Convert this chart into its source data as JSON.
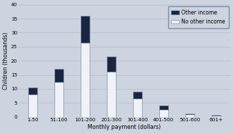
{
  "categories": [
    "1-50",
    "51-100",
    "101-200",
    "201-300",
    "301-400",
    "401-500",
    "501-600",
    "601+"
  ],
  "no_other_income": [
    8,
    12.5,
    26.5,
    16,
    6.5,
    2.5,
    0.8,
    0.4
  ],
  "other_income": [
    2.5,
    4.5,
    9.5,
    5.5,
    2.5,
    1.5,
    0.35,
    0.25
  ],
  "color_no_other": "#f0f2f8",
  "color_other": "#1a2540",
  "bar_edge_color": "#7a8aaa",
  "background_color": "#cdd4df",
  "grid_color": "#b8c0d0",
  "ylabel": "Children (thousands)",
  "xlabel": "Monthly payment (dollars)",
  "ylim": [
    0,
    40
  ],
  "yticks": [
    0,
    5,
    10,
    15,
    20,
    25,
    30,
    35,
    40
  ],
  "legend_other": "Other income",
  "legend_no_other": "No other income",
  "bar_width": 0.35
}
